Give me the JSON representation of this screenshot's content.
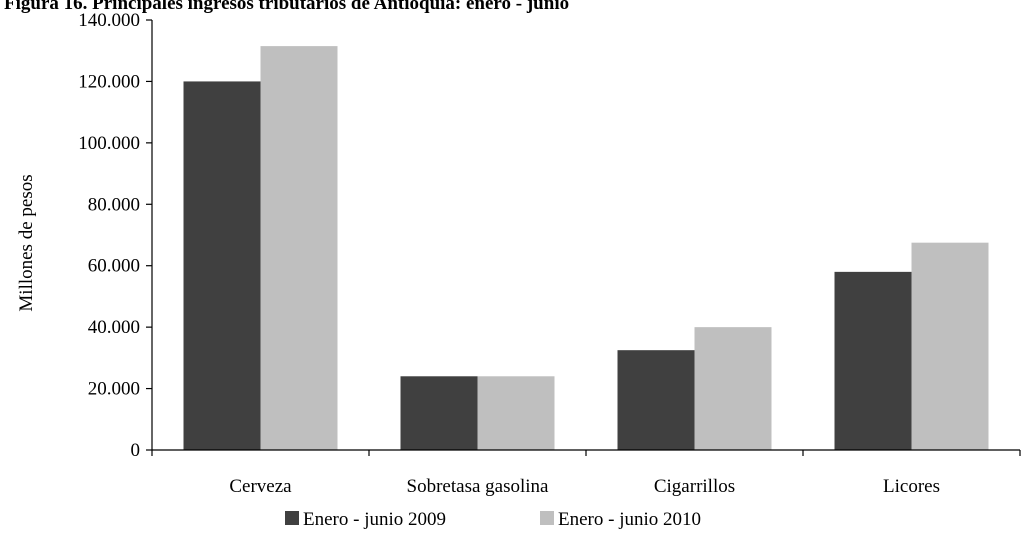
{
  "chart_data": {
    "type": "bar",
    "title": "Figura 16. Principales ingresos tributarios de Antioquia: enero - junio",
    "xlabel": "",
    "ylabel": "Millones de pesos",
    "ylim": [
      0,
      140000
    ],
    "ytick_step": 20000,
    "yticks": [
      "0",
      "20.000",
      "40.000",
      "60.000",
      "80.000",
      "100.000",
      "120.000",
      "140.000"
    ],
    "categories": [
      "Cerveza",
      "Sobretasa gasolina",
      "Cigarrillos",
      "Licores"
    ],
    "series": [
      {
        "name": "Enero - junio 2009",
        "color": "#404040",
        "values": [
          120000,
          24000,
          32500,
          58000
        ]
      },
      {
        "name": "Enero - junio 2010",
        "color": "#bfbfbf",
        "values": [
          131500,
          24000,
          40000,
          67500
        ]
      }
    ],
    "grid": false,
    "legend_position": "bottom"
  }
}
